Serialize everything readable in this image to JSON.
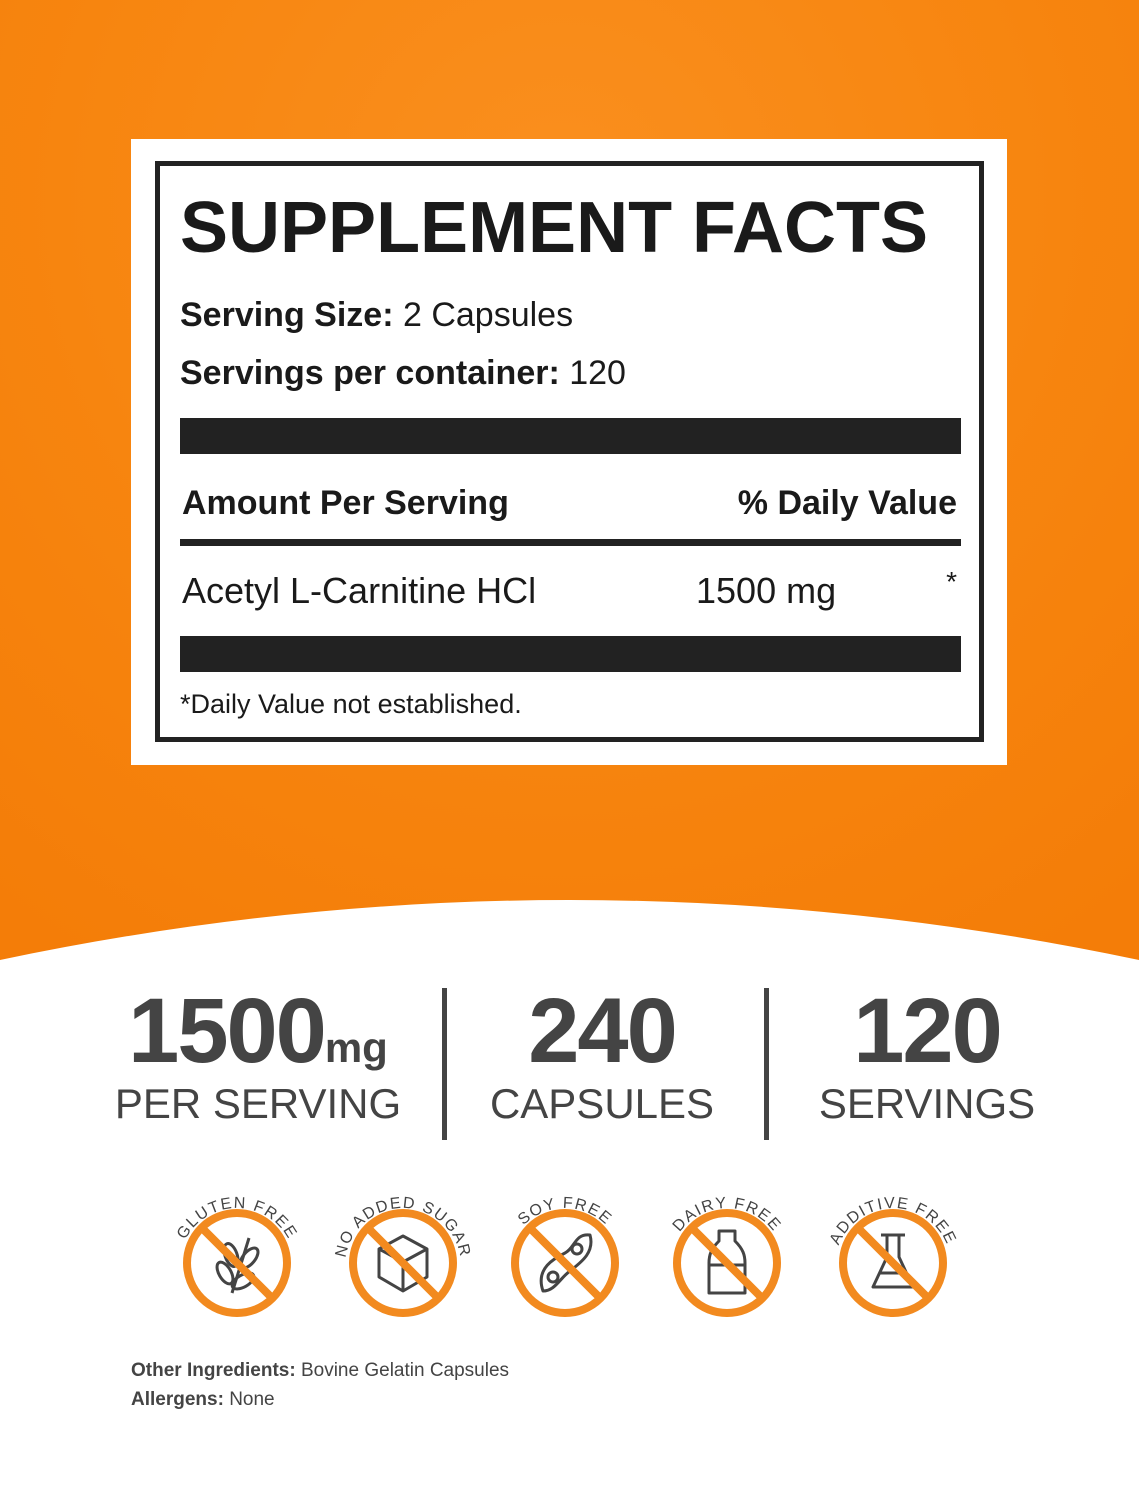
{
  "label": {
    "title": "SUPPLEMENT FACTS",
    "serving_size_label": "Serving Size:",
    "serving_size_value": "2 Capsules",
    "servings_label": "Servings per container:",
    "servings_value": "120",
    "amount_header": "Amount Per Serving",
    "dv_header": "% Daily Value",
    "ingredient_name": "Acetyl L-Carnitine HCl",
    "ingredient_amount": "1500 mg",
    "ingredient_dv": "*",
    "footnote": "*Daily Value not established."
  },
  "stats": [
    {
      "number": "1500",
      "unit": "mg",
      "caption": "PER SERVING"
    },
    {
      "number": "240",
      "caption": "CAPSULES"
    },
    {
      "number": "120",
      "caption": "SERVINGS"
    }
  ],
  "badges": [
    {
      "text": "GLUTEN FREE",
      "icon": "wheat-icon"
    },
    {
      "text": "NO ADDED SUGAR",
      "icon": "sugar-cube-icon"
    },
    {
      "text": "SOY FREE",
      "icon": "soybean-icon"
    },
    {
      "text": "DAIRY FREE",
      "icon": "milk-bottle-icon"
    },
    {
      "text": "ADDITIVE FREE",
      "icon": "flask-icon"
    }
  ],
  "other": {
    "ingredients_label": "Other Ingredients:",
    "ingredients_value": "Bovine Gelatin Capsules",
    "allergens_label": "Allergens:",
    "allergens_value": "None"
  },
  "colors": {
    "orange": "#f7850f",
    "badge_orange": "#f28a1f",
    "text_gray": "#444444"
  }
}
